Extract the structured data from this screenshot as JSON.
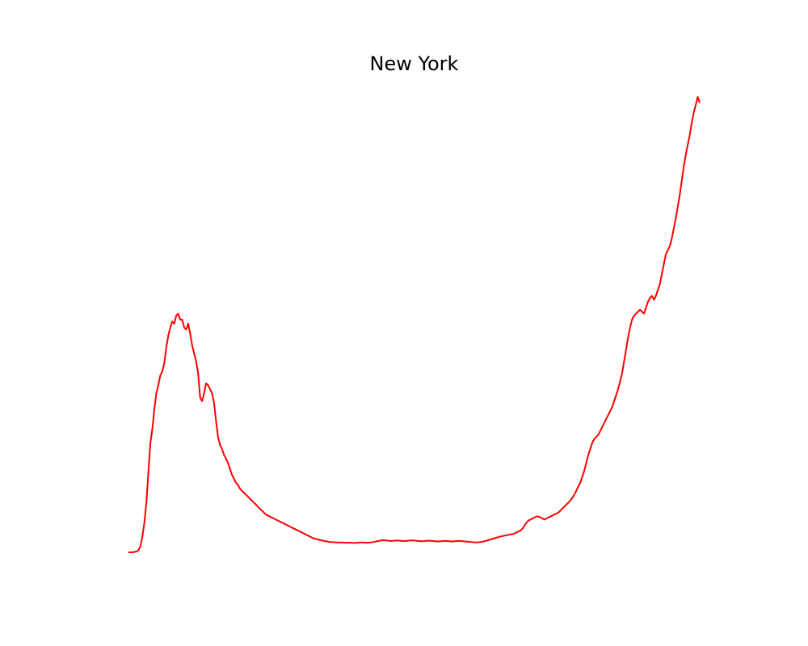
{
  "chart_data": {
    "type": "line",
    "title": "New York",
    "xlabel": "",
    "ylabel": "",
    "axes_visible": false,
    "grid": false,
    "legend": "none",
    "series": [
      {
        "color": "#ff0000",
        "values": [
          0,
          0,
          0,
          0.2,
          0.4,
          1,
          3,
          8,
          15,
          25,
          40,
          55,
          62,
          72,
          80,
          84,
          89,
          91,
          95,
          103,
          109,
          113,
          116,
          115,
          119,
          120,
          117,
          117,
          113,
          112,
          115,
          110,
          104,
          100,
          96,
          90,
          78,
          76,
          80,
          85,
          84,
          82,
          80,
          75,
          66,
          58,
          54,
          52,
          49,
          47,
          45,
          42,
          39,
          37,
          35,
          34,
          32,
          31,
          30,
          29,
          28,
          27,
          26,
          25,
          24,
          23,
          22,
          21,
          20,
          19,
          18.5,
          18,
          17.5,
          17,
          16.5,
          16,
          15.5,
          15,
          14.5,
          14,
          13.5,
          13,
          12.5,
          12,
          11.5,
          11,
          10.5,
          10,
          9.5,
          9,
          8.5,
          8,
          7.5,
          7,
          6.8,
          6.5,
          6.3,
          6,
          5.8,
          5.6,
          5.4,
          5.2,
          5.2,
          5.1,
          5.0,
          5.0,
          4.9,
          4.9,
          4.9,
          4.8,
          4.8,
          4.8,
          4.8,
          4.7,
          4.7,
          4.8,
          4.9,
          5.0,
          4.9,
          4.8,
          4.8,
          4.9,
          5.0,
          5.2,
          5.4,
          5.6,
          5.8,
          6.0,
          6.1,
          6.0,
          5.9,
          5.8,
          5.7,
          5.8,
          5.9,
          6.0,
          5.9,
          5.8,
          5.7,
          5.7,
          5.8,
          5.9,
          6.0,
          6.0,
          5.9,
          5.8,
          5.7,
          5.6,
          5.6,
          5.7,
          5.8,
          5.9,
          5.8,
          5.7,
          5.6,
          5.5,
          5.5,
          5.6,
          5.7,
          5.8,
          5.7,
          5.6,
          5.5,
          5.5,
          5.6,
          5.7,
          5.8,
          5.7,
          5.6,
          5.5,
          5.4,
          5.3,
          5.2,
          5.1,
          5.0,
          5.0,
          5.1,
          5.2,
          5.4,
          5.6,
          5.9,
          6.2,
          6.5,
          6.8,
          7.1,
          7.4,
          7.7,
          8.0,
          8.2,
          8.4,
          8.6,
          8.8,
          9.0,
          9.2,
          9.5,
          10,
          10.5,
          11,
          12,
          13.5,
          15,
          16,
          16.5,
          17,
          17.5,
          18,
          18,
          17.5,
          17,
          16.5,
          17,
          17.5,
          18,
          18.5,
          19,
          19.5,
          20,
          21,
          22,
          23,
          24,
          25,
          26,
          27.5,
          29,
          31,
          33,
          35,
          38,
          41,
          45,
          49,
          52,
          55,
          57,
          58,
          59,
          61,
          63,
          65,
          67,
          69,
          71,
          73,
          76,
          79,
          82,
          86,
          90,
          96,
          102,
          108,
          113,
          117,
          119,
          120,
          121,
          122,
          121,
          120,
          123,
          126,
          128,
          129,
          127,
          129,
          132,
          135,
          140,
          145,
          150,
          152,
          154,
          158,
          163,
          168,
          174,
          180,
          187,
          194,
          200,
          205,
          210,
          216,
          221,
          225,
          229,
          226
        ]
      }
    ]
  }
}
